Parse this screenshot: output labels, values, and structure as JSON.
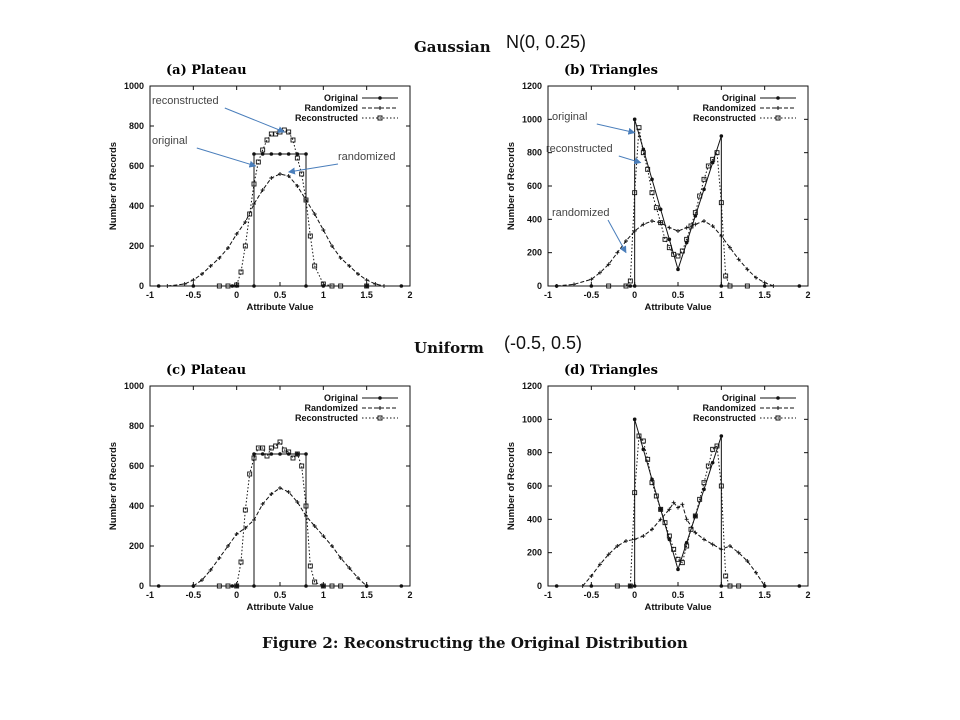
{
  "sections": [
    {
      "title": "Gaussian",
      "param": "N(0, 0.25)"
    },
    {
      "title": "Uniform",
      "param": "(-0.5, 0.5)"
    }
  ],
  "caption": "Figure 2: Reconstructing the Original Distribution",
  "colors": {
    "annotation_arrow": "#4a7ebb",
    "line": "#111111"
  },
  "chart_data": [
    {
      "type": "line",
      "title": "(a) Plateau",
      "xlabel": "Attribute Value",
      "ylabel": "Number of Records",
      "xlim": [
        -1,
        2
      ],
      "ylim": [
        0,
        1000
      ],
      "xticks": [
        -1,
        -0.5,
        0,
        0.5,
        1,
        1.5,
        2
      ],
      "xtick_labels": [
        "-1",
        "-0.5",
        "0",
        "0.5",
        "1",
        "1.5",
        "2"
      ],
      "yticks": [
        0,
        200,
        400,
        600,
        800,
        1000
      ],
      "ytick_labels": [
        "0",
        "200",
        "400",
        "600",
        "800",
        "1000"
      ],
      "legend": {
        "position": "top-right",
        "entries": [
          "Original",
          "Randomized",
          "Reconstructed"
        ]
      },
      "annotations": [
        {
          "text": "reconstructed",
          "points_to": [
            0.55,
            770
          ]
        },
        {
          "text": "original",
          "points_to": [
            0.22,
            600
          ]
        },
        {
          "text": "randomized",
          "points_to": [
            0.6,
            570
          ]
        }
      ],
      "series": [
        {
          "name": "Original",
          "marker": "dot",
          "dash": "solid",
          "x": [
            -0.9,
            -0.5,
            -0.05,
            0.0,
            0.2,
            0.2,
            0.3,
            0.4,
            0.5,
            0.6,
            0.7,
            0.8,
            0.8,
            1.0,
            1.5,
            1.9
          ],
          "y": [
            0,
            0,
            0,
            0,
            0,
            660,
            660,
            660,
            660,
            660,
            660,
            660,
            0,
            0,
            0,
            0
          ]
        },
        {
          "name": "Randomized",
          "marker": "plus",
          "dash": "dash",
          "x": [
            -0.8,
            -0.6,
            -0.5,
            -0.4,
            -0.3,
            -0.2,
            -0.1,
            0.0,
            0.1,
            0.2,
            0.3,
            0.4,
            0.5,
            0.6,
            0.7,
            0.8,
            0.9,
            1.0,
            1.1,
            1.2,
            1.3,
            1.4,
            1.5,
            1.6,
            1.7
          ],
          "y": [
            0,
            10,
            30,
            60,
            100,
            140,
            190,
            260,
            320,
            410,
            480,
            540,
            560,
            550,
            500,
            430,
            360,
            280,
            200,
            140,
            100,
            60,
            30,
            10,
            0
          ]
        },
        {
          "name": "Reconstructed",
          "marker": "square",
          "dash": "dot",
          "x": [
            -0.2,
            -0.1,
            0.0,
            0.05,
            0.1,
            0.15,
            0.2,
            0.25,
            0.3,
            0.35,
            0.4,
            0.45,
            0.5,
            0.55,
            0.6,
            0.65,
            0.7,
            0.75,
            0.8,
            0.85,
            0.9,
            1.0,
            1.1,
            1.2,
            1.5
          ],
          "y": [
            0,
            0,
            5,
            70,
            200,
            360,
            510,
            620,
            680,
            730,
            760,
            760,
            770,
            780,
            770,
            730,
            640,
            560,
            430,
            250,
            100,
            10,
            0,
            0,
            0
          ]
        }
      ]
    },
    {
      "type": "line",
      "title": "(b) Triangles",
      "xlabel": "Attribute Value",
      "ylabel": "Number of Records",
      "xlim": [
        -1,
        2
      ],
      "ylim": [
        0,
        1200
      ],
      "xticks": [
        -1,
        -0.5,
        0,
        0.5,
        1,
        1.5,
        2
      ],
      "xtick_labels": [
        "-1",
        "-0.5",
        "0",
        "0.5",
        "1",
        "1.5",
        "2"
      ],
      "yticks": [
        0,
        200,
        400,
        600,
        800,
        1000,
        1200
      ],
      "ytick_labels": [
        "0",
        "200",
        "400",
        "600",
        "800",
        "1000",
        "1200"
      ],
      "legend": {
        "position": "top-right",
        "entries": [
          "Original",
          "Randomized",
          "Reconstructed"
        ]
      },
      "annotations": [
        {
          "text": "original",
          "points_to": [
            0.0,
            920
          ]
        },
        {
          "text": "reconstructed",
          "points_to": [
            0.07,
            740
          ]
        },
        {
          "text": "randomized",
          "points_to": [
            -0.1,
            200
          ]
        }
      ],
      "series": [
        {
          "name": "Original",
          "marker": "dot",
          "dash": "solid",
          "x": [
            -0.9,
            -0.5,
            -0.05,
            0.0,
            0.0,
            0.1,
            0.2,
            0.3,
            0.4,
            0.5,
            0.6,
            0.7,
            0.8,
            0.9,
            1.0,
            1.0,
            1.5,
            1.9
          ],
          "y": [
            0,
            0,
            0,
            0,
            1000,
            820,
            640,
            460,
            280,
            100,
            260,
            420,
            580,
            740,
            900,
            0,
            0,
            0
          ]
        },
        {
          "name": "Randomized",
          "marker": "plus",
          "dash": "dash",
          "x": [
            -0.9,
            -0.7,
            -0.5,
            -0.4,
            -0.3,
            -0.2,
            -0.1,
            0.0,
            0.1,
            0.2,
            0.3,
            0.4,
            0.5,
            0.6,
            0.7,
            0.8,
            0.9,
            1.0,
            1.1,
            1.2,
            1.3,
            1.4,
            1.5,
            1.6
          ],
          "y": [
            0,
            10,
            40,
            80,
            130,
            200,
            270,
            330,
            370,
            390,
            380,
            350,
            330,
            350,
            370,
            390,
            360,
            300,
            230,
            160,
            100,
            50,
            20,
            0
          ]
        },
        {
          "name": "Reconstructed",
          "marker": "square",
          "dash": "dot",
          "x": [
            -0.3,
            -0.1,
            -0.05,
            0.0,
            0.05,
            0.1,
            0.15,
            0.2,
            0.25,
            0.3,
            0.35,
            0.4,
            0.45,
            0.5,
            0.55,
            0.6,
            0.65,
            0.7,
            0.75,
            0.8,
            0.85,
            0.9,
            0.95,
            1.0,
            1.05,
            1.1,
            1.3
          ],
          "y": [
            0,
            0,
            30,
            560,
            950,
            800,
            700,
            560,
            470,
            380,
            280,
            230,
            190,
            180,
            210,
            280,
            360,
            440,
            540,
            640,
            720,
            760,
            800,
            500,
            60,
            0,
            0
          ]
        }
      ]
    },
    {
      "type": "line",
      "title": "(c) Plateau",
      "xlabel": "Attribute Value",
      "ylabel": "Number of Records",
      "xlim": [
        -1,
        2
      ],
      "ylim": [
        0,
        1000
      ],
      "xticks": [
        -1,
        -0.5,
        0,
        0.5,
        1,
        1.5,
        2
      ],
      "xtick_labels": [
        "-1",
        "-0.5",
        "0",
        "0.5",
        "1",
        "1.5",
        "2"
      ],
      "yticks": [
        0,
        200,
        400,
        600,
        800,
        1000
      ],
      "ytick_labels": [
        "0",
        "200",
        "400",
        "600",
        "800",
        "1000"
      ],
      "legend": {
        "position": "top-right",
        "entries": [
          "Original",
          "Randomized",
          "Reconstructed"
        ]
      },
      "annotations": [],
      "series": [
        {
          "name": "Original",
          "marker": "dot",
          "dash": "solid",
          "x": [
            -0.9,
            -0.5,
            -0.05,
            0.0,
            0.2,
            0.2,
            0.3,
            0.4,
            0.5,
            0.6,
            0.7,
            0.8,
            0.8,
            1.0,
            1.5,
            1.9
          ],
          "y": [
            0,
            0,
            0,
            0,
            0,
            660,
            660,
            660,
            660,
            660,
            660,
            660,
            0,
            0,
            0,
            0
          ]
        },
        {
          "name": "Randomized",
          "marker": "plus",
          "dash": "dash",
          "x": [
            -0.5,
            -0.4,
            -0.3,
            -0.2,
            -0.1,
            0.0,
            0.1,
            0.2,
            0.3,
            0.4,
            0.5,
            0.6,
            0.7,
            0.8,
            0.9,
            1.0,
            1.1,
            1.2,
            1.3,
            1.4,
            1.5
          ],
          "y": [
            0,
            30,
            80,
            140,
            200,
            260,
            290,
            330,
            410,
            460,
            490,
            470,
            420,
            350,
            300,
            250,
            200,
            140,
            90,
            40,
            0
          ]
        },
        {
          "name": "Reconstructed",
          "marker": "square",
          "dash": "dot",
          "x": [
            -0.2,
            -0.1,
            0.0,
            0.05,
            0.1,
            0.15,
            0.2,
            0.25,
            0.3,
            0.35,
            0.4,
            0.45,
            0.5,
            0.55,
            0.6,
            0.65,
            0.7,
            0.75,
            0.8,
            0.85,
            0.9,
            1.0,
            1.1,
            1.2
          ],
          "y": [
            0,
            0,
            0,
            120,
            380,
            560,
            640,
            690,
            690,
            650,
            690,
            700,
            720,
            680,
            670,
            640,
            660,
            600,
            400,
            100,
            20,
            0,
            0,
            0
          ]
        }
      ]
    },
    {
      "type": "line",
      "title": "(d) Triangles",
      "xlabel": "Attribute Value",
      "ylabel": "Number of Records",
      "xlim": [
        -1,
        2
      ],
      "ylim": [
        0,
        1200
      ],
      "xticks": [
        -1,
        -0.5,
        0,
        0.5,
        1,
        1.5,
        2
      ],
      "xtick_labels": [
        "-1",
        "-0.5",
        "0",
        "0.5",
        "1",
        "1.5",
        "2"
      ],
      "yticks": [
        0,
        200,
        400,
        600,
        800,
        1000,
        1200
      ],
      "ytick_labels": [
        "0",
        "200",
        "400",
        "600",
        "800",
        "1000",
        "1200"
      ],
      "legend": {
        "position": "top-right",
        "entries": [
          "Original",
          "Randomized",
          "Reconstructed"
        ]
      },
      "annotations": [],
      "series": [
        {
          "name": "Original",
          "marker": "dot",
          "dash": "solid",
          "x": [
            -0.9,
            -0.5,
            -0.05,
            0.0,
            0.0,
            0.1,
            0.2,
            0.3,
            0.4,
            0.5,
            0.6,
            0.7,
            0.8,
            0.9,
            1.0,
            1.0,
            1.5,
            1.9
          ],
          "y": [
            0,
            0,
            0,
            0,
            1000,
            820,
            640,
            460,
            280,
            100,
            260,
            420,
            580,
            740,
            900,
            0,
            0,
            0
          ]
        },
        {
          "name": "Randomized",
          "marker": "plus",
          "dash": "dash",
          "x": [
            -0.6,
            -0.5,
            -0.4,
            -0.3,
            -0.2,
            -0.1,
            0.0,
            0.1,
            0.2,
            0.3,
            0.4,
            0.45,
            0.5,
            0.55,
            0.6,
            0.7,
            0.8,
            0.9,
            1.0,
            1.1,
            1.2,
            1.3,
            1.4,
            1.5
          ],
          "y": [
            0,
            60,
            130,
            190,
            240,
            270,
            280,
            300,
            340,
            400,
            460,
            500,
            470,
            490,
            400,
            320,
            280,
            250,
            220,
            240,
            200,
            150,
            80,
            0
          ]
        },
        {
          "name": "Reconstructed",
          "marker": "square",
          "dash": "dot",
          "x": [
            -0.2,
            -0.05,
            0.0,
            0.05,
            0.1,
            0.15,
            0.2,
            0.25,
            0.3,
            0.35,
            0.4,
            0.45,
            0.5,
            0.55,
            0.6,
            0.65,
            0.7,
            0.75,
            0.8,
            0.85,
            0.9,
            0.95,
            1.0,
            1.05,
            1.1,
            1.2
          ],
          "y": [
            0,
            0,
            560,
            900,
            870,
            760,
            620,
            540,
            460,
            380,
            300,
            220,
            160,
            140,
            240,
            340,
            420,
            520,
            620,
            720,
            820,
            840,
            600,
            60,
            0,
            0
          ]
        }
      ]
    }
  ]
}
